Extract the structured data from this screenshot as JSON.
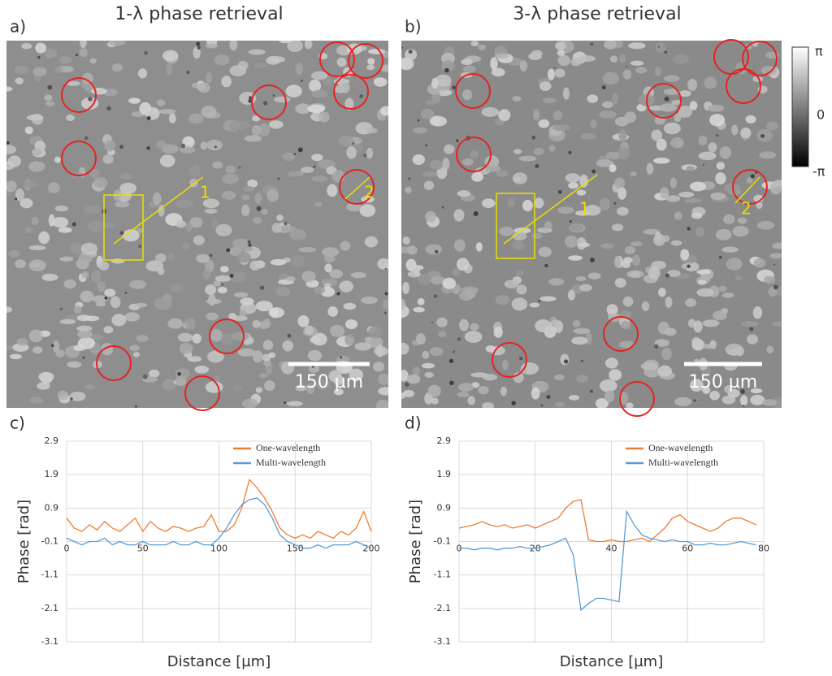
{
  "panels": [
    {
      "label": "a)",
      "title": "1-λ phase retrieval",
      "scale_bar": "150 µm",
      "markers": [
        "1",
        "2"
      ]
    },
    {
      "label": "b)",
      "title": "3-λ phase retrieval",
      "scale_bar": "150 µm",
      "markers": [
        "1",
        "2"
      ]
    }
  ],
  "colorbar": {
    "labels": [
      "π",
      "0",
      "-π"
    ]
  },
  "chart_data": [
    {
      "type": "line",
      "panel_label": "c)",
      "x_label": "Distance [µm]",
      "y_label": "Phase [rad]",
      "x": [
        0,
        5,
        10,
        15,
        20,
        25,
        30,
        35,
        40,
        45,
        50,
        55,
        60,
        65,
        70,
        75,
        80,
        85,
        90,
        95,
        100,
        105,
        110,
        115,
        120,
        125,
        130,
        135,
        140,
        145,
        150,
        155,
        160,
        165,
        170,
        175,
        180,
        185,
        190,
        195,
        200
      ],
      "series": [
        {
          "name": "One-wavelength",
          "color": "#ed7d31",
          "values": [
            0.6,
            0.3,
            0.2,
            0.4,
            0.25,
            0.5,
            0.3,
            0.2,
            0.4,
            0.6,
            0.2,
            0.5,
            0.3,
            0.2,
            0.35,
            0.3,
            0.2,
            0.3,
            0.35,
            0.7,
            0.2,
            0.2,
            0.4,
            0.9,
            1.75,
            1.5,
            1.2,
            0.8,
            0.3,
            0.1,
            0.0,
            0.1,
            0.0,
            0.2,
            0.1,
            0.0,
            0.2,
            0.1,
            0.3,
            0.8,
            0.2
          ]
        },
        {
          "name": "Multi-wavelength",
          "color": "#5b9bd5",
          "values": [
            0.0,
            -0.1,
            -0.2,
            -0.1,
            -0.1,
            0.0,
            -0.2,
            -0.1,
            -0.2,
            -0.2,
            -0.1,
            -0.2,
            -0.2,
            -0.2,
            -0.1,
            -0.2,
            -0.2,
            -0.1,
            -0.2,
            -0.2,
            0.0,
            0.3,
            0.7,
            1.0,
            1.15,
            1.2,
            1.0,
            0.6,
            0.1,
            -0.1,
            -0.2,
            -0.3,
            -0.3,
            -0.2,
            -0.3,
            -0.2,
            -0.2,
            -0.2,
            -0.1,
            -0.2,
            -0.3
          ]
        }
      ],
      "xlim": [
        0,
        200
      ],
      "xticks": [
        0,
        50,
        100,
        150,
        200
      ],
      "ylim": [
        -3.1,
        2.9
      ],
      "yticks": [
        -3.1,
        -2.1,
        -1.1,
        -0.1,
        0.9,
        1.9,
        2.9
      ],
      "grid": true,
      "legend": "upper-right"
    },
    {
      "type": "line",
      "panel_label": "d)",
      "x_label": "Distance [µm]",
      "y_label": "Phase [rad]",
      "x": [
        0,
        2,
        4,
        6,
        8,
        10,
        12,
        14,
        16,
        18,
        20,
        22,
        24,
        26,
        28,
        30,
        32,
        34,
        36,
        38,
        40,
        42,
        44,
        46,
        48,
        50,
        52,
        54,
        56,
        58,
        60,
        62,
        64,
        66,
        68,
        70,
        72,
        74,
        76,
        78
      ],
      "series": [
        {
          "name": "One-wavelength",
          "color": "#ed7d31",
          "values": [
            0.3,
            0.35,
            0.4,
            0.5,
            0.4,
            0.35,
            0.4,
            0.3,
            0.35,
            0.4,
            0.3,
            0.4,
            0.5,
            0.6,
            0.9,
            1.1,
            1.15,
            -0.05,
            -0.1,
            -0.1,
            -0.05,
            -0.1,
            -0.1,
            -0.05,
            0.0,
            -0.1,
            0.1,
            0.3,
            0.6,
            0.7,
            0.5,
            0.4,
            0.3,
            0.2,
            0.3,
            0.5,
            0.6,
            0.6,
            0.5,
            0.4
          ]
        },
        {
          "name": "Multi-wavelength",
          "color": "#5b9bd5",
          "values": [
            -0.3,
            -0.3,
            -0.35,
            -0.3,
            -0.3,
            -0.35,
            -0.3,
            -0.3,
            -0.25,
            -0.3,
            -0.3,
            -0.25,
            -0.2,
            -0.1,
            0.0,
            -0.5,
            -2.15,
            -1.95,
            -1.8,
            -1.8,
            -1.85,
            -1.9,
            0.8,
            0.4,
            0.1,
            0.0,
            -0.05,
            -0.1,
            -0.05,
            -0.1,
            -0.1,
            -0.2,
            -0.2,
            -0.15,
            -0.2,
            -0.2,
            -0.15,
            -0.1,
            -0.15,
            -0.2
          ]
        }
      ],
      "xlim": [
        0,
        80
      ],
      "xticks": [
        0,
        20,
        40,
        60,
        80
      ],
      "ylim": [
        -3.1,
        2.9
      ],
      "yticks": [
        -3.1,
        -2.1,
        -1.1,
        -0.1,
        0.9,
        1.9,
        2.9
      ],
      "grid": true,
      "legend": "upper-right"
    }
  ]
}
